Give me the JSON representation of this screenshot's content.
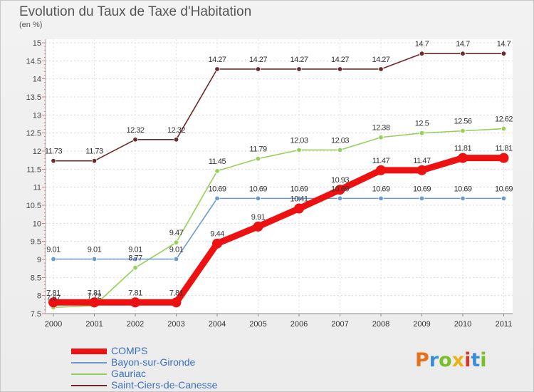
{
  "header": {
    "title": "Evolution du Taux de Taxe d'Habitation",
    "unit": "(en %)"
  },
  "logo": {
    "text": "Proxiti",
    "colors": [
      "#e8701a",
      "#3a8fd8",
      "#7bbf2a",
      "#e8b21a",
      "#d8382a",
      "#3a8fd8",
      "#7bbf2a"
    ]
  },
  "chart_data": {
    "type": "line",
    "title": "Evolution du Taux de Taxe d'Habitation",
    "ylabel": "(en %)",
    "xlabel": "",
    "ylim": [
      7.5,
      15
    ],
    "y_major_ticks": [
      "7.5",
      "8",
      "8.5",
      "9",
      "9.5",
      "10",
      "10.5",
      "11",
      "11.5",
      "12",
      "12.5",
      "13",
      "13.5",
      "14",
      "14.5",
      "15"
    ],
    "categories": [
      "2000",
      "2001",
      "2002",
      "2003",
      "2004",
      "2005",
      "2006",
      "2007",
      "2008",
      "2009",
      "2010",
      "2011"
    ],
    "grid": "dashed",
    "legend_position": "bottom-left",
    "series": [
      {
        "name": "Saint-Ciers-de-Canesse",
        "color": "#6b2a2a",
        "values": [
          11.73,
          11.73,
          12.32,
          12.32,
          14.27,
          14.27,
          14.27,
          14.27,
          14.27,
          14.7,
          14.7,
          14.7
        ],
        "labels": [
          "11.73",
          "11.73",
          "12.32",
          "12.32",
          "14.27",
          "14.27",
          "14.27",
          "14.27",
          "14.27",
          "14.7",
          "14.7",
          "14.7"
        ]
      },
      {
        "name": "Gauriac",
        "color": "#96d05a",
        "values": [
          7.67,
          7.72,
          8.77,
          9.47,
          11.45,
          11.79,
          12.03,
          12.03,
          12.38,
          12.5,
          12.56,
          12.62
        ],
        "labels": [
          "7.67",
          "7.72",
          "8.77",
          "9.47",
          "11.45",
          "11.79",
          "12.03",
          "12.03",
          "12.38",
          "12.5",
          "12.56",
          "12.62"
        ]
      },
      {
        "name": "Bayon-sur-Gironde",
        "color": "#6a9ad0",
        "values": [
          9.01,
          9.01,
          9.01,
          9.01,
          10.69,
          10.69,
          10.69,
          10.69,
          10.69,
          10.69,
          10.69,
          10.69
        ],
        "labels": [
          "9.01",
          "9.01",
          "9.01",
          "9.01",
          "10.69",
          "10.69",
          "10.69",
          "10.69",
          "10.69",
          "10.69",
          "10.69",
          "10.69"
        ]
      },
      {
        "name": "COMPS",
        "color": "#ee1111",
        "values": [
          7.81,
          7.81,
          7.81,
          7.81,
          9.44,
          9.91,
          10.41,
          10.93,
          11.47,
          11.47,
          11.81,
          11.81
        ],
        "labels": [
          "7.81",
          "7.81",
          "7.81",
          "7.81",
          "9.44",
          "9.91",
          "10.41",
          "10.93",
          "11.47",
          "11.47",
          "11.81",
          "11.81"
        ]
      }
    ],
    "legend": [
      "COMPS",
      "Bayon-sur-Gironde",
      "Gauriac",
      "Saint-Ciers-de-Canesse"
    ]
  }
}
